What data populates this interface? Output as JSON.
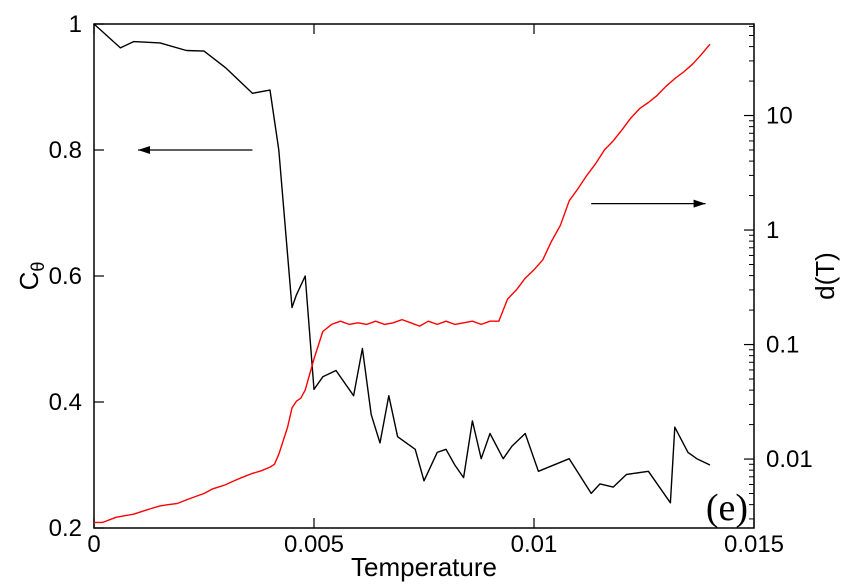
{
  "chart_data": {
    "type": "line",
    "xlabel": "Temperature",
    "ylabel_left": "C",
    "ylabel_left_subscript": "θ",
    "ylabel_right": "d(T)",
    "panel_label": "(e)",
    "xlim": [
      0,
      0.015
    ],
    "ylim_left": [
      0.2,
      1.0
    ],
    "ylim_right": [
      0.0025,
      63
    ],
    "yscale_right": "log",
    "x_ticks": [
      {
        "value": 0,
        "label": "0"
      },
      {
        "value": 0.005,
        "label": "0.005"
      },
      {
        "value": 0.01,
        "label": "0.01"
      },
      {
        "value": 0.015,
        "label": "0.015"
      }
    ],
    "y_left_ticks": [
      {
        "value": 0.2,
        "label": "0.2"
      },
      {
        "value": 0.4,
        "label": "0.4"
      },
      {
        "value": 0.6,
        "label": "0.6"
      },
      {
        "value": 0.8,
        "label": "0.8"
      },
      {
        "value": 1.0,
        "label": "1"
      }
    ],
    "y_right_ticks": [
      {
        "value": 0.01,
        "label": "0.01"
      },
      {
        "value": 0.1,
        "label": "0.1"
      },
      {
        "value": 1,
        "label": "1"
      },
      {
        "value": 10,
        "label": "10"
      }
    ],
    "series": [
      {
        "axis": "left",
        "color": "#000000",
        "x": [
          0,
          0.0006,
          0.0009,
          0.0015,
          0.0021,
          0.0025,
          0.003,
          0.0036,
          0.004,
          0.0042,
          0.0045,
          0.0046,
          0.0048,
          0.005,
          0.0052,
          0.0055,
          0.0057,
          0.0059,
          0.0061,
          0.0063,
          0.0065,
          0.0067,
          0.0069,
          0.0073,
          0.0075,
          0.0078,
          0.008,
          0.0082,
          0.0084,
          0.0086,
          0.0088,
          0.009,
          0.0093,
          0.0095,
          0.0098,
          0.0101,
          0.0108,
          0.0113,
          0.0115,
          0.0118,
          0.0121,
          0.0126,
          0.0131,
          0.0132,
          0.0135,
          0.0137,
          0.014
        ],
        "y": [
          1.0,
          0.962,
          0.972,
          0.97,
          0.958,
          0.957,
          0.93,
          0.89,
          0.895,
          0.8,
          0.55,
          0.57,
          0.6,
          0.42,
          0.44,
          0.45,
          0.43,
          0.41,
          0.485,
          0.38,
          0.335,
          0.41,
          0.345,
          0.325,
          0.275,
          0.32,
          0.325,
          0.3,
          0.28,
          0.37,
          0.31,
          0.35,
          0.31,
          0.33,
          0.35,
          0.29,
          0.31,
          0.255,
          0.27,
          0.265,
          0.285,
          0.29,
          0.24,
          0.36,
          0.32,
          0.31,
          0.3
        ]
      },
      {
        "axis": "right",
        "color": "#ff0000",
        "x": [
          0,
          0.0002,
          0.0005,
          0.0007,
          0.0009,
          0.0011,
          0.0013,
          0.0015,
          0.0017,
          0.0019,
          0.0021,
          0.0023,
          0.0025,
          0.0027,
          0.0029,
          0.003,
          0.0032,
          0.0034,
          0.0036,
          0.0038,
          0.004,
          0.0041,
          0.0042,
          0.0044,
          0.0045,
          0.0046,
          0.0047,
          0.0048,
          0.005,
          0.0052,
          0.0054,
          0.0056,
          0.0058,
          0.006,
          0.0062,
          0.0064,
          0.0066,
          0.0068,
          0.007,
          0.0072,
          0.0074,
          0.0076,
          0.0078,
          0.008,
          0.0082,
          0.0084,
          0.0086,
          0.0088,
          0.009,
          0.0092,
          0.0094,
          0.0096,
          0.0098,
          0.01,
          0.0102,
          0.0104,
          0.0106,
          0.0108,
          0.011,
          0.0112,
          0.0114,
          0.0116,
          0.0118,
          0.012,
          0.0122,
          0.0124,
          0.0126,
          0.0128,
          0.013,
          0.0132,
          0.0134,
          0.0136,
          0.0138,
          0.014
        ],
        "y": [
          0.0028,
          0.0028,
          0.0031,
          0.0032,
          0.0033,
          0.0035,
          0.0037,
          0.0039,
          0.004,
          0.0041,
          0.0044,
          0.0047,
          0.005,
          0.0055,
          0.0058,
          0.006,
          0.0065,
          0.007,
          0.0075,
          0.0079,
          0.0085,
          0.009,
          0.011,
          0.019,
          0.028,
          0.032,
          0.034,
          0.04,
          0.075,
          0.13,
          0.15,
          0.16,
          0.15,
          0.155,
          0.15,
          0.16,
          0.15,
          0.155,
          0.165,
          0.155,
          0.145,
          0.16,
          0.15,
          0.16,
          0.15,
          0.155,
          0.16,
          0.15,
          0.16,
          0.16,
          0.25,
          0.3,
          0.38,
          0.45,
          0.55,
          0.8,
          1.1,
          1.8,
          2.3,
          3.0,
          3.8,
          5.0,
          6.0,
          7.5,
          9.5,
          11.5,
          13.0,
          15.0,
          18.0,
          21.0,
          24.0,
          28.0,
          34.0,
          42.0
        ]
      }
    ],
    "annotations": [
      {
        "type": "arrow",
        "direction": "left",
        "axis": "left",
        "x_from": 0.0036,
        "x_to": 0.001,
        "y": 0.8
      },
      {
        "type": "arrow",
        "direction": "right",
        "axis": "right",
        "x_from": 0.0113,
        "x_to": 0.0139,
        "y": 1.7
      }
    ]
  }
}
